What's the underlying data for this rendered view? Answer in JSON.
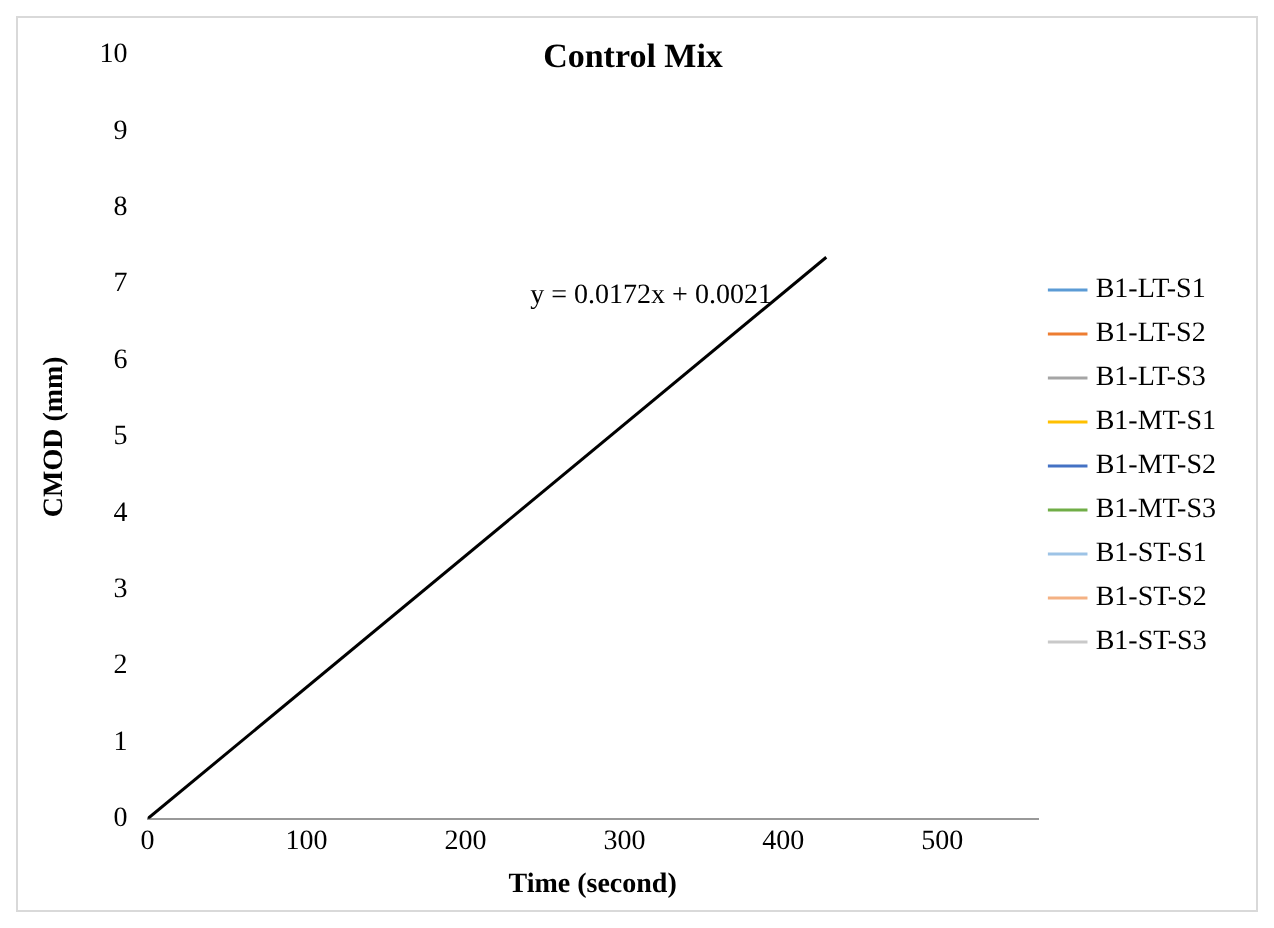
{
  "chart_data": {
    "type": "line",
    "title": "Control Mix",
    "xlabel": "Time (second)",
    "ylabel": "CMOD (mm)",
    "xlim": [
      0,
      560
    ],
    "xticks": [
      0,
      100,
      200,
      300,
      400,
      500
    ],
    "ylim": [
      0,
      10
    ],
    "yticks": [
      0,
      1,
      2,
      3,
      4,
      5,
      6,
      7,
      8,
      9,
      10
    ],
    "grid": false,
    "legend": "right",
    "marker": "none",
    "line_style": "solid",
    "annotations": [
      "y = 0.0172x + 0.0021"
    ],
    "series": [
      {
        "name": "B1-LT-S1",
        "color": "#5b9bd5",
        "values": [
          null
        ]
      },
      {
        "name": "B1-LT-S2",
        "color": "#ed7d31",
        "values": [
          null
        ]
      },
      {
        "name": "B1-LT-S3",
        "color": "#a5a5a5",
        "values": [
          null
        ]
      },
      {
        "name": "B1-MT-S1",
        "color": "#ffc000",
        "values": [
          null
        ]
      },
      {
        "name": "B1-MT-S2",
        "color": "#4472c4",
        "values": [
          null
        ]
      },
      {
        "name": "B1-MT-S3",
        "color": "#70ad47",
        "values": [
          null
        ]
      },
      {
        "name": "B1-ST-S1",
        "color": "#9dc3e6",
        "values": [
          null
        ]
      },
      {
        "name": "B1-ST-S2",
        "color": "#f4b183",
        "values": [
          null
        ]
      },
      {
        "name": "B1-ST-S3",
        "color": "#c9c9c9",
        "values": [
          null
        ]
      },
      {
        "type": "line",
        "color": "#000000",
        "x": [
          0,
          427
        ],
        "values": [
          0,
          7.35
        ]
      }
    ]
  }
}
